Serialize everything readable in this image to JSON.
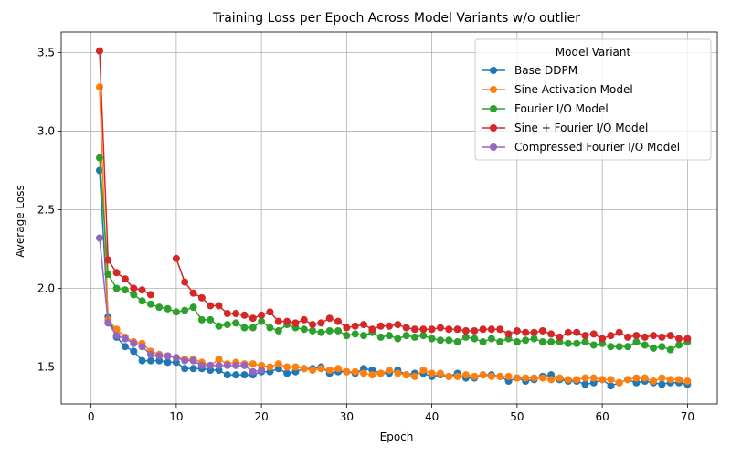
{
  "chart_data": {
    "type": "line",
    "title": "Training Loss per Epoch Across Model Variants w/o outlier",
    "xlabel": "Epoch",
    "ylabel": "Average Loss",
    "xlim": [
      -3.5,
      73.5
    ],
    "ylim": [
      1.265,
      3.63
    ],
    "xticks": [
      0,
      10,
      20,
      30,
      40,
      50,
      60,
      70
    ],
    "yticks": [
      1.5,
      2.0,
      2.5,
      3.0,
      3.5
    ],
    "ytick_labels": [
      "1.5",
      "2.0",
      "2.5",
      "3.0",
      "3.5"
    ],
    "grid": true,
    "legend": {
      "title": "Model Variant",
      "position": "top-right"
    },
    "x": [
      1,
      2,
      3,
      4,
      5,
      6,
      7,
      8,
      9,
      10,
      11,
      12,
      13,
      14,
      15,
      16,
      17,
      18,
      19,
      20,
      21,
      22,
      23,
      24,
      25,
      26,
      27,
      28,
      29,
      30,
      31,
      32,
      33,
      34,
      35,
      36,
      37,
      38,
      39,
      40,
      41,
      42,
      43,
      44,
      45,
      46,
      47,
      48,
      49,
      50,
      51,
      52,
      53,
      54,
      55,
      56,
      57,
      58,
      59,
      60,
      61,
      62,
      63,
      64,
      65,
      66,
      67,
      68,
      69,
      70
    ],
    "series": [
      {
        "name": "Base DDPM",
        "color": "#1f77b4",
        "values": [
          2.75,
          1.82,
          1.69,
          1.63,
          1.6,
          1.54,
          1.54,
          1.54,
          1.53,
          1.53,
          1.49,
          1.49,
          1.49,
          1.48,
          1.48,
          1.45,
          1.45,
          1.45,
          1.45,
          1.47,
          1.47,
          1.49,
          1.46,
          1.47,
          1.49,
          1.49,
          1.5,
          1.46,
          1.47,
          1.47,
          1.46,
          1.49,
          1.48,
          1.46,
          1.46,
          1.48,
          1.45,
          1.46,
          1.46,
          1.44,
          1.45,
          1.44,
          1.46,
          1.43,
          1.43,
          1.45,
          1.45,
          1.44,
          1.41,
          1.43,
          1.41,
          1.42,
          1.44,
          1.45,
          1.42,
          1.41,
          1.41,
          1.39,
          1.4,
          1.42,
          1.38,
          1.4,
          1.42,
          1.4,
          1.41,
          1.4,
          1.39,
          1.4,
          1.4,
          1.39
        ]
      },
      {
        "name": "Sine Activation Model",
        "color": "#ff7f0e",
        "values": [
          3.28,
          1.8,
          1.74,
          1.69,
          1.66,
          1.65,
          1.6,
          1.58,
          1.57,
          1.56,
          1.55,
          1.55,
          1.53,
          1.51,
          1.55,
          1.52,
          1.53,
          1.52,
          1.52,
          1.51,
          1.5,
          1.52,
          1.5,
          1.5,
          1.49,
          1.48,
          1.49,
          1.48,
          1.49,
          1.47,
          1.47,
          1.46,
          1.45,
          1.46,
          1.48,
          1.46,
          1.45,
          1.44,
          1.48,
          1.46,
          1.46,
          1.44,
          1.44,
          1.45,
          1.44,
          1.45,
          1.44,
          1.44,
          1.44,
          1.43,
          1.43,
          1.43,
          1.43,
          1.42,
          1.43,
          1.42,
          1.42,
          1.43,
          1.43,
          1.42,
          1.42,
          1.4,
          1.42,
          1.43,
          1.43,
          1.41,
          1.43,
          1.42,
          1.42,
          1.41
        ]
      },
      {
        "name": "Fourier I/O Model",
        "color": "#2ca02c",
        "values": [
          2.83,
          2.09,
          2.0,
          1.99,
          1.96,
          1.92,
          1.9,
          1.88,
          1.87,
          1.85,
          1.86,
          1.88,
          1.8,
          1.8,
          1.76,
          1.77,
          1.78,
          1.75,
          1.75,
          1.79,
          1.75,
          1.73,
          1.77,
          1.75,
          1.74,
          1.73,
          1.72,
          1.73,
          1.73,
          1.7,
          1.71,
          1.7,
          1.72,
          1.69,
          1.7,
          1.68,
          1.7,
          1.69,
          1.7,
          1.68,
          1.67,
          1.67,
          1.66,
          1.69,
          1.68,
          1.66,
          1.68,
          1.66,
          1.68,
          1.66,
          1.67,
          1.68,
          1.66,
          1.66,
          1.66,
          1.65,
          1.65,
          1.66,
          1.64,
          1.65,
          1.63,
          1.63,
          1.63,
          1.66,
          1.64,
          1.62,
          1.63,
          1.61,
          1.64,
          1.66
        ]
      },
      {
        "name": "Sine + Fourier I/O Model",
        "color": "#d62728",
        "values": [
          3.51,
          2.18,
          2.1,
          2.06,
          2.0,
          1.99,
          1.96,
          null,
          null,
          2.19,
          2.04,
          1.97,
          1.94,
          1.89,
          1.89,
          1.84,
          1.84,
          1.83,
          1.81,
          1.83,
          1.85,
          1.79,
          1.79,
          1.78,
          1.8,
          1.77,
          1.78,
          1.81,
          1.79,
          1.75,
          1.76,
          1.77,
          1.74,
          1.76,
          1.76,
          1.77,
          1.75,
          1.74,
          1.74,
          1.74,
          1.75,
          1.74,
          1.74,
          1.73,
          1.73,
          1.74,
          1.74,
          1.74,
          1.71,
          1.73,
          1.72,
          1.72,
          1.73,
          1.71,
          1.69,
          1.72,
          1.72,
          1.7,
          1.71,
          1.68,
          1.7,
          1.72,
          1.69,
          1.7,
          1.69,
          1.7,
          1.69,
          1.7,
          1.68,
          1.68
        ]
      },
      {
        "name": "Compressed Fourier I/O Model",
        "color": "#9467bd",
        "values": [
          2.32,
          1.78,
          1.7,
          1.68,
          1.65,
          1.63,
          1.58,
          1.57,
          1.57,
          1.56,
          1.54,
          1.54,
          1.51,
          1.51,
          1.51,
          1.51,
          1.51,
          1.51,
          1.47,
          1.48,
          null,
          null,
          null,
          null,
          null,
          null,
          null,
          null,
          null,
          null,
          null,
          null,
          null,
          null,
          null,
          null,
          null,
          null,
          null,
          null,
          null,
          null,
          null,
          null,
          null,
          null,
          null,
          null,
          null,
          null,
          null,
          null,
          null,
          null,
          null,
          null,
          null,
          null,
          null,
          null,
          null,
          null,
          null,
          null,
          null,
          null,
          null,
          null,
          null,
          null
        ]
      }
    ]
  }
}
